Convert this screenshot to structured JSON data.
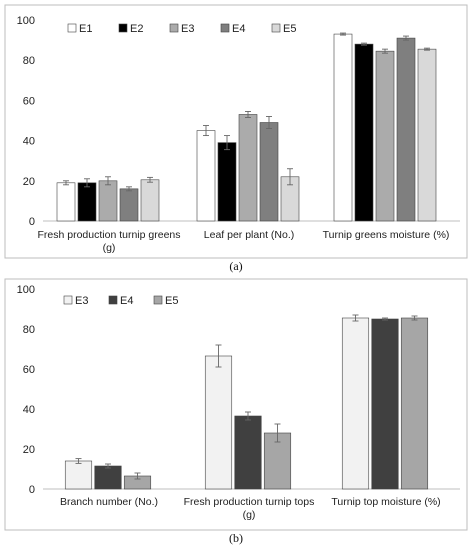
{
  "chart_data": [
    {
      "type": "bar",
      "caption": "(a)",
      "categories": [
        "Fresh production turnip greens (g)",
        "Leaf per plant (No.)",
        "Turnip greens moisture (%)"
      ],
      "category_lines": [
        [
          "Fresh production turnip greens",
          "(g)"
        ],
        [
          "Leaf per plant (No.)"
        ],
        [
          "Turnip greens moisture (%)"
        ]
      ],
      "ylim": [
        0,
        100
      ],
      "yticks": [
        0,
        20,
        40,
        60,
        80,
        100
      ],
      "grid": false,
      "legend": "top-left",
      "series": [
        {
          "name": "E1",
          "color": "#ffffff",
          "values": [
            19,
            45,
            93
          ],
          "errors": [
            1.0,
            2.5,
            0.5
          ]
        },
        {
          "name": "E2",
          "color": "#000000",
          "values": [
            19,
            39,
            88
          ],
          "errors": [
            2.0,
            3.5,
            0.5
          ]
        },
        {
          "name": "E3",
          "color": "#ababab",
          "values": [
            20,
            53,
            84.5
          ],
          "errors": [
            2.0,
            1.5,
            1.0
          ]
        },
        {
          "name": "E4",
          "color": "#7f7f7f",
          "values": [
            16,
            49,
            91
          ],
          "errors": [
            1.0,
            3.0,
            1.0
          ]
        },
        {
          "name": "E5",
          "color": "#d9d9d9",
          "values": [
            20.5,
            22,
            85.5
          ],
          "errors": [
            1.2,
            4.0,
            0.5
          ]
        }
      ]
    },
    {
      "type": "bar",
      "caption": "(b)",
      "categories": [
        "Branch number (No.)",
        "Fresh production turnip tops (g)",
        "Turnip top moisture (%)"
      ],
      "category_lines": [
        [
          "Branch number (No.)"
        ],
        [
          "Fresh production turnip tops",
          "(g)"
        ],
        [
          "Turnip top moisture (%)"
        ]
      ],
      "ylim": [
        0,
        100
      ],
      "yticks": [
        0,
        20,
        40,
        60,
        80,
        100
      ],
      "grid": false,
      "legend": "top-left",
      "series": [
        {
          "name": "E3",
          "color": "#f2f2f2",
          "values": [
            14,
            66.5,
            85.5
          ],
          "errors": [
            1.2,
            5.5,
            1.5
          ]
        },
        {
          "name": "E4",
          "color": "#404040",
          "values": [
            11.5,
            36.5,
            85
          ],
          "errors": [
            1.0,
            2.0,
            0.5
          ]
        },
        {
          "name": "E5",
          "color": "#a6a6a6",
          "values": [
            6.5,
            28,
            85.5
          ],
          "errors": [
            1.5,
            4.5,
            1.0
          ]
        }
      ]
    }
  ]
}
